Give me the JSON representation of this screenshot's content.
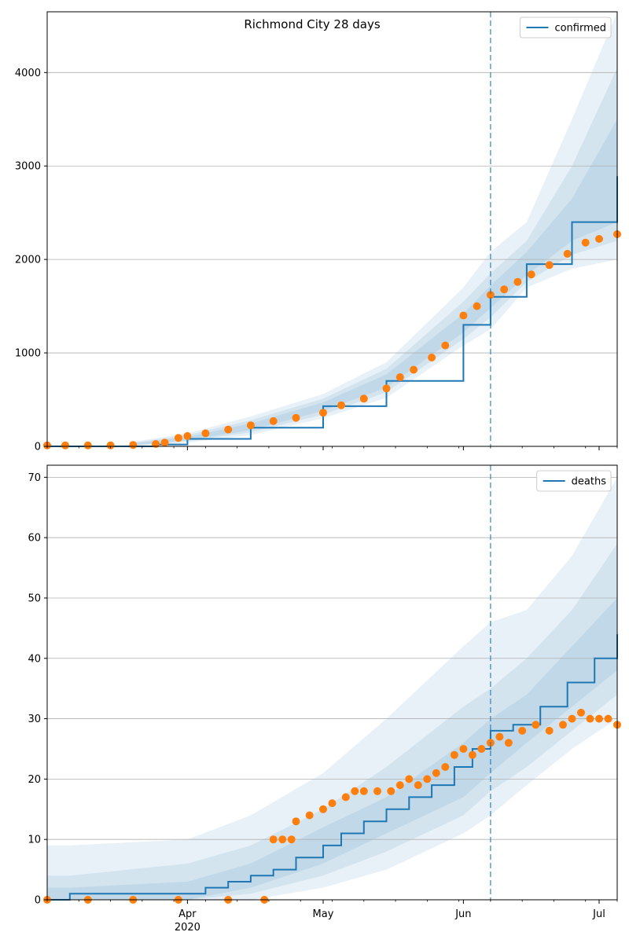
{
  "title": "Richmond City 28 days",
  "colors": {
    "model": "#1f77b4",
    "observed": "#ff7f0e",
    "band": "#1f77b4",
    "grid": "#b0b0b0"
  },
  "chart_data": [
    {
      "type": "line",
      "panel": "top",
      "legend": [
        "confirmed"
      ],
      "legend_position": "top-right",
      "grid": "y",
      "xlim": [
        "2020-03-01",
        "2020-07-05"
      ],
      "ylim": [
        0,
        4650
      ],
      "yticks": [
        0,
        1000,
        2000,
        3000,
        4000
      ],
      "forecast_start": "2020-06-07",
      "model": {
        "name": "confirmed",
        "x": [
          "2020-03-01",
          "2020-03-25",
          "2020-04-01",
          "2020-04-15",
          "2020-05-01",
          "2020-05-15",
          "2020-06-01",
          "2020-06-07",
          "2020-06-15",
          "2020-06-25",
          "2020-07-05"
        ],
        "y": [
          0,
          20,
          80,
          200,
          430,
          700,
          1300,
          1600,
          1950,
          2400,
          2890
        ]
      },
      "bands": [
        {
          "x": [
            "2020-03-20",
            "2020-04-01",
            "2020-04-15",
            "2020-05-01",
            "2020-05-15",
            "2020-06-01",
            "2020-06-07",
            "2020-06-15",
            "2020-06-25",
            "2020-07-05"
          ],
          "lo": [
            0,
            40,
            120,
            300,
            520,
            1080,
            1250,
            1700,
            1900,
            2000
          ],
          "hi": [
            50,
            140,
            320,
            560,
            900,
            1700,
            2080,
            2400,
            3500,
            4650
          ]
        },
        {
          "x": [
            "2020-03-20",
            "2020-04-01",
            "2020-04-15",
            "2020-05-01",
            "2020-05-15",
            "2020-06-01",
            "2020-06-07",
            "2020-06-15",
            "2020-06-25",
            "2020-07-05"
          ],
          "lo": [
            5,
            55,
            150,
            340,
            580,
            1150,
            1380,
            1760,
            2050,
            2200
          ],
          "hi": [
            40,
            120,
            280,
            510,
            830,
            1550,
            1850,
            2200,
            3000,
            4050
          ]
        },
        {
          "x": [
            "2020-03-20",
            "2020-04-01",
            "2020-04-15",
            "2020-05-01",
            "2020-05-15",
            "2020-06-01",
            "2020-06-07",
            "2020-06-15",
            "2020-06-25",
            "2020-07-05"
          ],
          "lo": [
            10,
            65,
            175,
            380,
            630,
            1220,
            1480,
            1830,
            2200,
            2400
          ],
          "hi": [
            30,
            100,
            245,
            470,
            770,
            1420,
            1720,
            2080,
            2650,
            3500
          ]
        }
      ],
      "observed": {
        "x": [
          "2020-03-01",
          "2020-03-05",
          "2020-03-10",
          "2020-03-15",
          "2020-03-20",
          "2020-03-25",
          "2020-03-27",
          "2020-03-30",
          "2020-04-01",
          "2020-04-05",
          "2020-04-10",
          "2020-04-15",
          "2020-04-20",
          "2020-04-25",
          "2020-05-01",
          "2020-05-05",
          "2020-05-10",
          "2020-05-15",
          "2020-05-18",
          "2020-05-21",
          "2020-05-25",
          "2020-05-28",
          "2020-06-01",
          "2020-06-04",
          "2020-06-07",
          "2020-06-10",
          "2020-06-13",
          "2020-06-16",
          "2020-06-20",
          "2020-06-24",
          "2020-06-28",
          "2020-07-01",
          "2020-07-05"
        ],
        "y": [
          10,
          10,
          10,
          10,
          15,
          25,
          40,
          90,
          110,
          140,
          180,
          225,
          270,
          305,
          360,
          440,
          510,
          620,
          740,
          820,
          950,
          1080,
          1400,
          1500,
          1620,
          1680,
          1760,
          1840,
          1940,
          2060,
          2180,
          2220,
          2270
        ]
      }
    },
    {
      "type": "line",
      "panel": "bottom",
      "legend": [
        "deaths"
      ],
      "legend_position": "top-right",
      "grid": "y",
      "xlim": [
        "2020-03-01",
        "2020-07-05"
      ],
      "ylim": [
        0,
        72
      ],
      "yticks": [
        0,
        10,
        20,
        30,
        40,
        50,
        60,
        70
      ],
      "forecast_start": "2020-06-07",
      "xticks": [
        {
          "date": "2020-04-01",
          "label": "Apr",
          "sub": "2020"
        },
        {
          "date": "2020-05-01",
          "label": "May",
          "sub": ""
        },
        {
          "date": "2020-06-01",
          "label": "Jun",
          "sub": ""
        },
        {
          "date": "2020-07-01",
          "label": "Jul",
          "sub": ""
        }
      ],
      "model": {
        "name": "deaths",
        "x": [
          "2020-03-01",
          "2020-03-06",
          "2020-03-30",
          "2020-04-05",
          "2020-04-10",
          "2020-04-15",
          "2020-04-20",
          "2020-04-25",
          "2020-05-01",
          "2020-05-05",
          "2020-05-10",
          "2020-05-15",
          "2020-05-20",
          "2020-05-25",
          "2020-05-30",
          "2020-06-03",
          "2020-06-07",
          "2020-06-12",
          "2020-06-18",
          "2020-06-24",
          "2020-06-30",
          "2020-07-05"
        ],
        "y": [
          0,
          1,
          1,
          2,
          3,
          4,
          5,
          7,
          9,
          11,
          13,
          15,
          17,
          19,
          22,
          25,
          28,
          29,
          32,
          36,
          40,
          44
        ]
      },
      "bands": [
        {
          "x": [
            "2020-03-01",
            "2020-03-06",
            "2020-04-01",
            "2020-04-15",
            "2020-05-01",
            "2020-05-15",
            "2020-06-01",
            "2020-06-07",
            "2020-06-15",
            "2020-06-25",
            "2020-07-05"
          ],
          "lo": [
            0,
            0,
            0,
            0,
            2,
            5,
            11,
            14,
            19,
            25,
            30
          ],
          "hi": [
            9,
            9,
            10,
            14,
            21,
            30,
            42,
            46,
            48,
            57,
            70
          ]
        },
        {
          "x": [
            "2020-03-01",
            "2020-03-06",
            "2020-04-01",
            "2020-04-15",
            "2020-05-01",
            "2020-05-15",
            "2020-06-01",
            "2020-06-07",
            "2020-06-15",
            "2020-06-25",
            "2020-07-05"
          ],
          "lo": [
            0,
            0,
            0,
            1,
            4,
            8,
            14,
            18,
            22,
            28,
            34
          ],
          "hi": [
            4,
            4,
            6,
            9,
            15,
            22,
            32,
            35,
            40,
            48,
            59
          ]
        },
        {
          "x": [
            "2020-03-01",
            "2020-03-06",
            "2020-04-01",
            "2020-04-15",
            "2020-05-01",
            "2020-05-15",
            "2020-06-01",
            "2020-06-07",
            "2020-06-15",
            "2020-06-25",
            "2020-07-05"
          ],
          "lo": [
            0,
            0,
            0,
            2,
            6,
            11,
            17,
            21,
            26,
            32,
            38
          ],
          "hi": [
            2,
            2,
            3,
            6,
            12,
            17,
            26,
            30,
            34,
            42,
            50
          ]
        }
      ],
      "observed": {
        "x": [
          "2020-03-01",
          "2020-03-10",
          "2020-03-20",
          "2020-03-30",
          "2020-04-10",
          "2020-04-18",
          "2020-04-20",
          "2020-04-22",
          "2020-04-24",
          "2020-04-25",
          "2020-04-28",
          "2020-05-01",
          "2020-05-03",
          "2020-05-06",
          "2020-05-08",
          "2020-05-10",
          "2020-05-13",
          "2020-05-16",
          "2020-05-18",
          "2020-05-20",
          "2020-05-22",
          "2020-05-24",
          "2020-05-26",
          "2020-05-28",
          "2020-05-30",
          "2020-06-01",
          "2020-06-03",
          "2020-06-05",
          "2020-06-07",
          "2020-06-09",
          "2020-06-11",
          "2020-06-14",
          "2020-06-17",
          "2020-06-20",
          "2020-06-23",
          "2020-06-25",
          "2020-06-27",
          "2020-06-29",
          "2020-07-01",
          "2020-07-03",
          "2020-07-05"
        ],
        "y": [
          0,
          0,
          0,
          0,
          0,
          0,
          10,
          10,
          10,
          13,
          14,
          15,
          16,
          17,
          18,
          18,
          18,
          18,
          19,
          20,
          19,
          20,
          21,
          22,
          24,
          25,
          24,
          25,
          26,
          27,
          26,
          28,
          29,
          28,
          29,
          30,
          31,
          30,
          30,
          30,
          29
        ]
      }
    }
  ]
}
